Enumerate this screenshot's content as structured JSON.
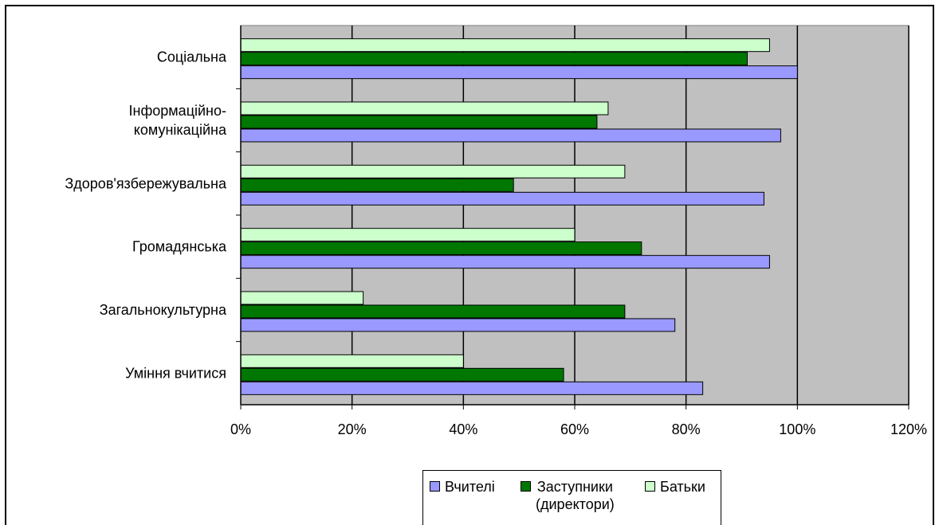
{
  "chart_data": {
    "type": "bar",
    "orientation": "horizontal",
    "categories": [
      "Соціальна",
      "Інформаційно-комунікаційна",
      "Здоров'язбережувальна",
      "Громадянська",
      "Загальнокультурна",
      "Уміння вчитися"
    ],
    "category_label_lines": [
      [
        "Соціальна"
      ],
      [
        "Інформаційно-",
        "комунікаційна"
      ],
      [
        "Здоров'язбережувальна"
      ],
      [
        "Громадянська"
      ],
      [
        "Загальнокультурна"
      ],
      [
        "Уміння вчитися"
      ]
    ],
    "series": [
      {
        "name": "Батьки",
        "color": "#ccffcc",
        "values": [
          95,
          66,
          69,
          60,
          22,
          40
        ]
      },
      {
        "name": "Заступники (директори)",
        "color": "#007700",
        "values": [
          91,
          64,
          49,
          72,
          69,
          58
        ]
      },
      {
        "name": "Вчителі",
        "color": "#9999ff",
        "values": [
          100,
          97,
          94,
          95,
          78,
          83
        ]
      }
    ],
    "xlim": [
      0,
      120
    ],
    "xticks": [
      0,
      20,
      40,
      60,
      80,
      100,
      120
    ],
    "xtick_labels": [
      "0%",
      "20%",
      "40%",
      "60%",
      "80%",
      "100%",
      "120%"
    ],
    "grid": "vertical",
    "plot_background": "#c0c0c0",
    "legend_position": "bottom"
  },
  "legend": {
    "items": [
      {
        "label": "Вчителі",
        "color": "#9999ff"
      },
      {
        "label": "Заступники\n(директори)",
        "color": "#007700"
      },
      {
        "label": "Батьки",
        "color": "#ccffcc"
      }
    ]
  }
}
